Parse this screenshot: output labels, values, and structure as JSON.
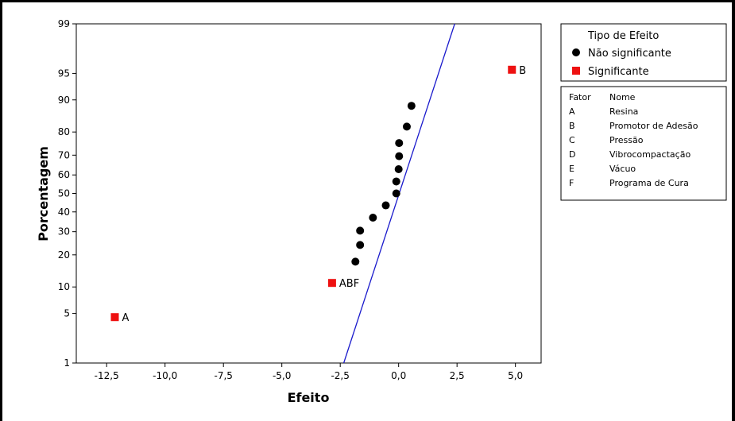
{
  "chart_data": {
    "type": "scatter",
    "xlabel": "Efeito",
    "ylabel": "Porcentagem",
    "x_ticks": [
      -12.5,
      -10.0,
      -7.5,
      -5.0,
      -2.5,
      0.0,
      2.5,
      5.0
    ],
    "x_tick_labels": [
      "-12,5",
      "-10,0",
      "-7,5",
      "-5,0",
      "-2,5",
      "0,0",
      "2,5",
      "5,0"
    ],
    "xlim": [
      -13.8,
      6.1
    ],
    "y_ticks": [
      1,
      5,
      10,
      20,
      30,
      40,
      50,
      60,
      70,
      80,
      90,
      95,
      99
    ],
    "ylim": [
      1,
      99
    ],
    "y_scale": "normal-probability",
    "fit_line": {
      "x": [
        -2.35,
        2.4
      ],
      "y": [
        1,
        99
      ]
    },
    "legend": {
      "title": "Tipo de Efeito",
      "placement": "right",
      "entries": [
        {
          "label": "Não significante",
          "marker": "circle",
          "color": "#000000"
        },
        {
          "label": "Significante",
          "marker": "square",
          "color": "#ee1111"
        }
      ]
    },
    "series": [
      {
        "name": "Não significante",
        "color": "#000000",
        "points": [
          {
            "x": -1.85,
            "y": 17.5
          },
          {
            "x": -1.65,
            "y": 24.0
          },
          {
            "x": -1.65,
            "y": 30.5
          },
          {
            "x": -1.1,
            "y": 37.0
          },
          {
            "x": -0.55,
            "y": 43.5
          },
          {
            "x": -0.1,
            "y": 50.0
          },
          {
            "x": -0.1,
            "y": 56.5
          },
          {
            "x": 0.0,
            "y": 63.0
          },
          {
            "x": 0.02,
            "y": 69.5
          },
          {
            "x": 0.02,
            "y": 75.5
          },
          {
            "x": 0.35,
            "y": 82.0
          },
          {
            "x": 0.55,
            "y": 88.5
          }
        ]
      },
      {
        "name": "Significante",
        "color": "#ee1111",
        "points": [
          {
            "x": -12.15,
            "y": 4.5,
            "label": "A"
          },
          {
            "x": -2.85,
            "y": 11.0,
            "label": "ABF"
          },
          {
            "x": 4.85,
            "y": 95.5,
            "label": "B"
          }
        ]
      }
    ]
  },
  "factor_table": {
    "headers": [
      "Fator",
      "Nome"
    ],
    "rows": [
      [
        "A",
        "Resina"
      ],
      [
        "B",
        "Promotor de Adesão"
      ],
      [
        "C",
        "Pressão"
      ],
      [
        "D",
        "Vibrocompactação"
      ],
      [
        "E",
        "Vácuo"
      ],
      [
        "F",
        "Programa de Cura"
      ]
    ]
  },
  "colors": {
    "fit_line": "#1a1acc",
    "significant": "#ee1111",
    "not_significant": "#000000"
  }
}
